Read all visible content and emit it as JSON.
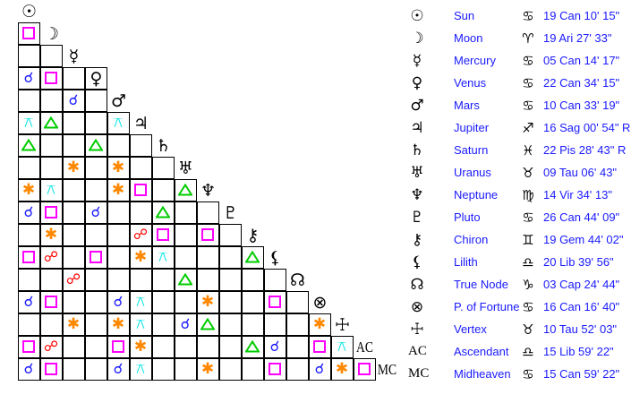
{
  "colors": {
    "conjunction": "#1a1aff",
    "square": "#ff00ff",
    "trine": "#00cc00",
    "sextile": "#ff8800",
    "quincunx": "#00e5e5",
    "opposition": "#ff0000",
    "text": "#1a1aff"
  },
  "aspect_glyphs": {
    "conjunction": "☌",
    "sextile": "✱",
    "quincunx": "⚻",
    "opposition": "☍"
  },
  "planets": [
    {
      "glyph": "☉",
      "name": "Sun",
      "sign": "♋",
      "position": "19 Can 10' 15\""
    },
    {
      "glyph": "☽",
      "name": "Moon",
      "sign": "♈",
      "position": "19 Ari 27' 33\""
    },
    {
      "glyph": "☿",
      "name": "Mercury",
      "sign": "♋",
      "position": "05 Can 14' 17\""
    },
    {
      "glyph": "♀",
      "name": "Venus",
      "sign": "♋",
      "position": "22 Can 34' 15\""
    },
    {
      "glyph": "♂",
      "name": "Mars",
      "sign": "♋",
      "position": "10 Can 33' 19\""
    },
    {
      "glyph": "♃",
      "name": "Jupiter",
      "sign": "♐",
      "position": "16 Sag 00' 54\" R"
    },
    {
      "glyph": "♄",
      "name": "Saturn",
      "sign": "♓",
      "position": "22 Pis 28' 43\" R"
    },
    {
      "glyph": "♅",
      "name": "Uranus",
      "sign": "♉",
      "position": "09 Tau 06' 43\""
    },
    {
      "glyph": "♆",
      "name": "Neptune",
      "sign": "♍",
      "position": "14 Vir 34' 13\""
    },
    {
      "glyph": "♇",
      "name": "Pluto",
      "sign": "♋",
      "position": "26 Can 44' 09\""
    },
    {
      "glyph": "⚷",
      "name": "Chiron",
      "sign": "♊",
      "position": "19 Gem 44' 02\""
    },
    {
      "glyph": "⚸",
      "name": "Lilith",
      "sign": "♎",
      "position": "20 Lib 39' 56\""
    },
    {
      "glyph": "☊",
      "name": "True Node",
      "sign": "♑",
      "position": "03 Cap 24' 44\""
    },
    {
      "glyph": "⊗",
      "name": "P. of Fortune",
      "sign": "♋",
      "position": "16 Can 16' 40\""
    },
    {
      "glyph": "☩",
      "name": "Vertex",
      "sign": "♉",
      "position": "10 Tau 52' 03\""
    },
    {
      "glyph": "AC",
      "name": "Ascendant",
      "sign": "♎",
      "position": "15 Lib 59' 22\""
    },
    {
      "glyph": "MC",
      "name": "Midheaven",
      "sign": "♋",
      "position": "15 Can 59' 22\""
    }
  ],
  "aspects": [
    [],
    [
      "square"
    ],
    [
      "",
      ""
    ],
    [
      "conjunction",
      "square",
      "",
      ""
    ],
    [
      "",
      "",
      "conjunction",
      ""
    ],
    [
      "quincunx",
      "trine",
      "",
      "",
      "quincunx"
    ],
    [
      "trine",
      "",
      "",
      "trine",
      "",
      ""
    ],
    [
      "",
      "",
      "sextile",
      "",
      "sextile",
      "",
      ""
    ],
    [
      "sextile",
      "quincunx",
      "",
      "",
      "sextile",
      "square",
      "",
      "trine"
    ],
    [
      "conjunction",
      "square",
      "",
      "conjunction",
      "",
      "",
      "trine",
      "",
      ""
    ],
    [
      "",
      "sextile",
      "",
      "",
      "",
      "opposition",
      "square",
      "",
      "square",
      ""
    ],
    [
      "square",
      "opposition",
      "",
      "square",
      "",
      "sextile",
      "quincunx",
      "",
      "",
      "",
      "trine"
    ],
    [
      "",
      "",
      "opposition",
      "",
      "",
      "",
      "",
      "trine",
      "",
      "",
      "",
      ""
    ],
    [
      "conjunction",
      "square",
      "",
      "",
      "conjunction",
      "quincunx",
      "",
      "",
      "sextile",
      "",
      "",
      "square",
      ""
    ],
    [
      "",
      "",
      "sextile",
      "",
      "sextile",
      "quincunx",
      "",
      "conjunction",
      "trine",
      "",
      "",
      "",
      "",
      "sextile"
    ],
    [
      "square",
      "opposition",
      "",
      "",
      "square",
      "sextile",
      "",
      "",
      "",
      "",
      "trine",
      "conjunction",
      "",
      "square",
      "quincunx"
    ],
    [
      "conjunction",
      "square",
      "",
      "",
      "conjunction",
      "quincunx",
      "",
      "",
      "sextile",
      "",
      "",
      "square",
      "",
      "conjunction",
      "sextile",
      "square"
    ]
  ]
}
